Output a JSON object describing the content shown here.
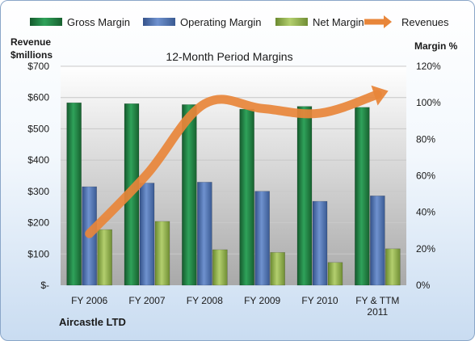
{
  "chart_data": {
    "type": "bar",
    "title": "12-Month Period Margins",
    "company": "Aircastle LTD",
    "left_axis_label": [
      "Revenue",
      "$millions"
    ],
    "right_axis_label": "Margin %",
    "categories": [
      [
        "FY 2006"
      ],
      [
        "FY 2007"
      ],
      [
        "FY 2008"
      ],
      [
        "FY 2009"
      ],
      [
        "FY 2010"
      ],
      [
        "FY & TTM",
        "2011"
      ]
    ],
    "left_ticks": [
      "$-",
      "$100",
      "$200",
      "$300",
      "$400",
      "$500",
      "$600",
      "$700"
    ],
    "right_ticks": [
      "0%",
      "20%",
      "40%",
      "60%",
      "80%",
      "100%",
      "120%"
    ],
    "ylim_left": [
      0,
      700
    ],
    "ylim_right": [
      0,
      120
    ],
    "series": [
      {
        "name": "Gross Margin",
        "axis": "right",
        "color": "#1f7a3f",
        "values": [
          100,
          99.5,
          99,
          96.5,
          98,
          97.5
        ]
      },
      {
        "name": "Operating Margin",
        "axis": "right",
        "color": "#4a6fae",
        "values": [
          54,
          56,
          56.5,
          51.5,
          46,
          49
        ]
      },
      {
        "name": "Net Margin",
        "axis": "right",
        "color": "#8fae4a",
        "values": [
          30.5,
          35,
          19.5,
          18,
          12.5,
          20
        ]
      },
      {
        "name": "Revenues",
        "axis": "left",
        "type": "line",
        "color": "#e8863a",
        "values": [
          165,
          355,
          580,
          565,
          550,
          610
        ]
      }
    ]
  }
}
